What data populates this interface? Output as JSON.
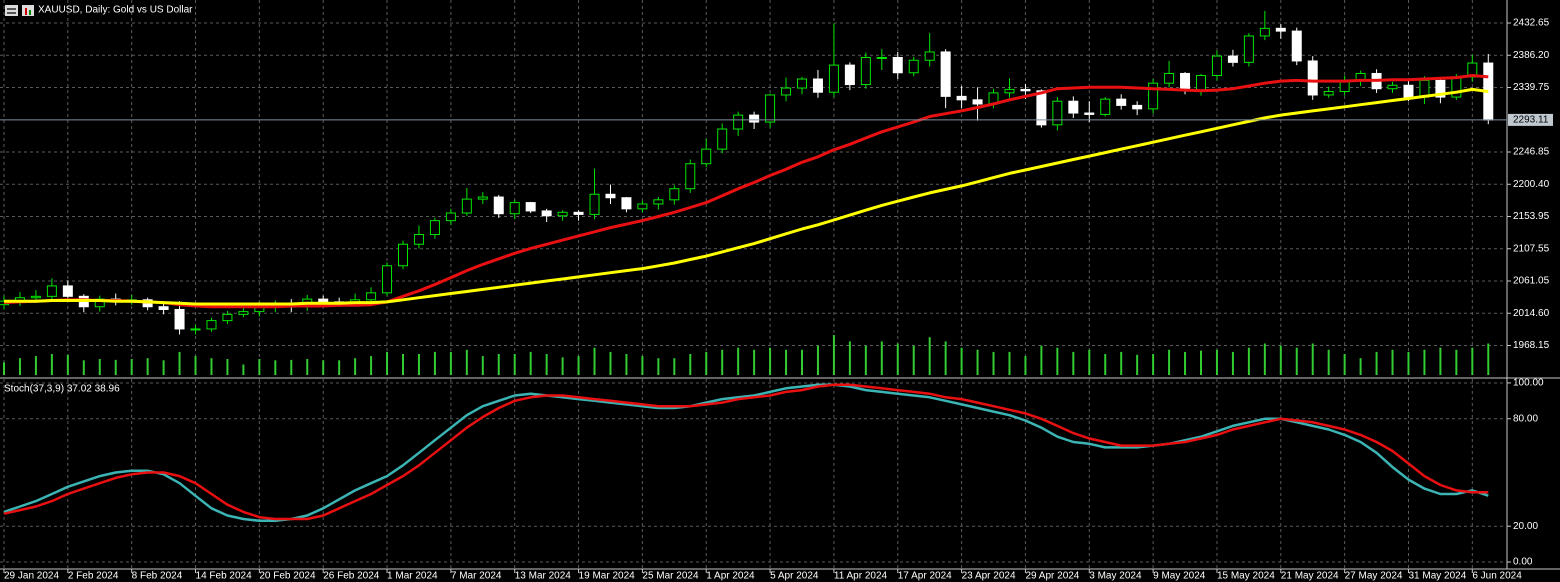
{
  "chart_data": [
    {
      "type": "candlestick",
      "title": "XAUUSD, Daily:  Gold vs US Dollar",
      "categories": [
        "29 Jan 2024",
        null,
        null,
        null,
        "2 Feb 2024",
        null,
        null,
        null,
        "8 Feb 2024",
        null,
        null,
        null,
        "14 Feb 2024",
        null,
        null,
        null,
        "20 Feb 2024",
        null,
        null,
        null,
        "26 Feb 2024",
        null,
        null,
        null,
        "1 Mar 2024",
        null,
        null,
        null,
        "7 Mar 2024",
        null,
        null,
        null,
        "13 Mar 2024",
        null,
        null,
        null,
        "19 Mar 2024",
        null,
        null,
        null,
        "25 Mar 2024",
        null,
        null,
        null,
        "1 Apr 2024",
        null,
        null,
        null,
        "5 Apr 2024",
        null,
        null,
        null,
        "11 Apr 2024",
        null,
        null,
        null,
        "17 Apr 2024",
        null,
        null,
        null,
        "23 Apr 2024",
        null,
        null,
        null,
        "29 Apr 2024",
        null,
        null,
        null,
        "3 May 2024",
        null,
        null,
        null,
        "9 May 2024",
        null,
        null,
        null,
        "15 May 2024",
        null,
        null,
        null,
        "21 May 2024",
        null,
        null,
        null,
        "27 May 2024",
        null,
        null,
        null,
        "31 May 2024",
        null,
        null,
        null,
        "6 Jun 2024",
        null
      ],
      "open": [
        2027,
        2032,
        2037,
        2039,
        2054,
        2039,
        2024,
        2035,
        2034,
        2034,
        2024,
        2020,
        1992,
        1992,
        2004,
        2013,
        2017,
        2024,
        2025,
        2024,
        2035,
        2031,
        2029,
        2034,
        2044,
        2083,
        2114,
        2128,
        2148,
        2159,
        2179,
        2182,
        2158,
        2174,
        2162,
        2155,
        2160,
        2157,
        2186,
        2181,
        2165,
        2172,
        2178,
        2194,
        2230,
        2251,
        2280,
        2300,
        2290,
        2329,
        2339,
        2352,
        2333,
        2372,
        2344,
        2383,
        2383,
        2361,
        2379,
        2391,
        2327,
        2322,
        2316,
        2332,
        2337,
        2335,
        2286,
        2320,
        2303,
        2301,
        2323,
        2314,
        2309,
        2346,
        2360,
        2336,
        2357,
        2385,
        2376,
        2414,
        2425,
        2421,
        2378,
        2329,
        2334,
        2350,
        2360,
        2338,
        2343,
        2326,
        2350,
        2326,
        2355,
        2375
      ],
      "high": [
        2040,
        2045,
        2048,
        2065,
        2062,
        2042,
        2040,
        2043,
        2041,
        2037,
        2032,
        2032,
        1998,
        2008,
        2018,
        2022,
        2031,
        2033,
        2035,
        2041,
        2040,
        2037,
        2043,
        2052,
        2088,
        2119,
        2141,
        2152,
        2165,
        2195,
        2189,
        2185,
        2178,
        2175,
        2165,
        2163,
        2163,
        2223,
        2200,
        2182,
        2177,
        2182,
        2199,
        2236,
        2266,
        2288,
        2305,
        2305,
        2331,
        2354,
        2355,
        2365,
        2432,
        2376,
        2390,
        2395,
        2391,
        2384,
        2418,
        2395,
        2342,
        2340,
        2338,
        2353,
        2345,
        2337,
        2326,
        2327,
        2320,
        2326,
        2330,
        2320,
        2352,
        2378,
        2362,
        2359,
        2393,
        2394,
        2418,
        2450,
        2431,
        2426,
        2385,
        2341,
        2357,
        2364,
        2366,
        2348,
        2352,
        2356,
        2355,
        2359,
        2387,
        2388
      ],
      "low": [
        2020,
        2025,
        2030,
        2032,
        2033,
        2016,
        2017,
        2026,
        2027,
        2019,
        2013,
        1984,
        1984,
        1988,
        1999,
        2009,
        2010,
        2016,
        2016,
        2018,
        2025,
        2024,
        2025,
        2030,
        2040,
        2078,
        2108,
        2122,
        2142,
        2155,
        2172,
        2152,
        2150,
        2159,
        2146,
        2148,
        2148,
        2150,
        2172,
        2160,
        2160,
        2164,
        2171,
        2188,
        2225,
        2245,
        2270,
        2280,
        2282,
        2320,
        2330,
        2325,
        2326,
        2336,
        2338,
        2365,
        2352,
        2356,
        2370,
        2310,
        2310,
        2292,
        2310,
        2325,
        2323,
        2282,
        2278,
        2296,
        2290,
        2298,
        2308,
        2300,
        2302,
        2340,
        2330,
        2328,
        2350,
        2370,
        2370,
        2408,
        2410,
        2372,
        2322,
        2325,
        2328,
        2342,
        2332,
        2332,
        2320,
        2316,
        2317,
        2322,
        2348,
        2287
      ],
      "close": [
        2032,
        2037,
        2039,
        2054,
        2039,
        2024,
        2035,
        2034,
        2034,
        2024,
        2020,
        1992,
        1992,
        2004,
        2013,
        2017,
        2024,
        2025,
        2024,
        2035,
        2031,
        2029,
        2034,
        2044,
        2083,
        2114,
        2128,
        2148,
        2159,
        2179,
        2182,
        2158,
        2174,
        2162,
        2155,
        2160,
        2157,
        2186,
        2181,
        2165,
        2172,
        2178,
        2194,
        2230,
        2251,
        2280,
        2300,
        2290,
        2329,
        2339,
        2352,
        2333,
        2372,
        2344,
        2383,
        2383,
        2361,
        2379,
        2391,
        2327,
        2322,
        2316,
        2332,
        2337,
        2335,
        2286,
        2320,
        2303,
        2301,
        2323,
        2314,
        2309,
        2346,
        2360,
        2336,
        2357,
        2385,
        2376,
        2414,
        2425,
        2421,
        2378,
        2329,
        2334,
        2350,
        2360,
        2338,
        2343,
        2326,
        2350,
        2326,
        2355,
        2375,
        2293
      ],
      "up_color": "#00e600",
      "up_fill": "#000000",
      "down_color": "#ffffff",
      "series": [
        {
          "color": "#e81010",
          "values": [
            2030,
            2031,
            2032,
            2033,
            2034,
            2034,
            2033,
            2033,
            2032,
            2031,
            2030,
            2027,
            2025,
            2024,
            2024,
            2024,
            2024,
            2024,
            2025,
            2025,
            2025,
            2026,
            2026,
            2027,
            2031,
            2039,
            2047,
            2056,
            2066,
            2076,
            2085,
            2093,
            2101,
            2108,
            2114,
            2120,
            2126,
            2132,
            2138,
            2143,
            2148,
            2154,
            2160,
            2167,
            2174,
            2184,
            2194,
            2203,
            2213,
            2222,
            2232,
            2240,
            2250,
            2258,
            2267,
            2276,
            2283,
            2290,
            2298,
            2302,
            2306,
            2311,
            2316,
            2322,
            2327,
            2332,
            2338,
            2339,
            2340,
            2340,
            2340,
            2339,
            2338,
            2337,
            2336,
            2335,
            2336,
            2338,
            2342,
            2346,
            2349,
            2350,
            2349,
            2349,
            2349,
            2350,
            2350,
            2351,
            2351,
            2352,
            2353,
            2354,
            2357,
            2355
          ]
        },
        {
          "color": "#ffff00",
          "values": [
            2032,
            2032,
            2032,
            2033,
            2033,
            2033,
            2033,
            2032,
            2032,
            2031,
            2030,
            2029,
            2028,
            2028,
            2028,
            2028,
            2028,
            2028,
            2028,
            2029,
            2029,
            2029,
            2030,
            2030,
            2031,
            2034,
            2037,
            2040,
            2043,
            2046,
            2049,
            2052,
            2055,
            2058,
            2061,
            2064,
            2067,
            2070,
            2073,
            2076,
            2079,
            2083,
            2087,
            2092,
            2097,
            2103,
            2109,
            2115,
            2122,
            2129,
            2136,
            2142,
            2149,
            2156,
            2163,
            2170,
            2176,
            2182,
            2188,
            2193,
            2198,
            2204,
            2210,
            2216,
            2221,
            2226,
            2231,
            2236,
            2241,
            2246,
            2251,
            2256,
            2261,
            2266,
            2271,
            2276,
            2281,
            2286,
            2291,
            2296,
            2300,
            2303,
            2306,
            2309,
            2312,
            2315,
            2318,
            2321,
            2324,
            2327,
            2330,
            2333,
            2337,
            2334
          ]
        }
      ],
      "volume": [
        30,
        40,
        45,
        50,
        48,
        35,
        38,
        36,
        38,
        40,
        35,
        55,
        45,
        40,
        38,
        25,
        38,
        35,
        36,
        38,
        35,
        35,
        40,
        45,
        55,
        50,
        50,
        55,
        55,
        60,
        45,
        50,
        50,
        55,
        50,
        42,
        45,
        65,
        55,
        50,
        45,
        40,
        40,
        50,
        55,
        60,
        65,
        60,
        65,
        60,
        60,
        70,
        95,
        80,
        70,
        80,
        75,
        70,
        90,
        80,
        65,
        60,
        55,
        55,
        45,
        70,
        65,
        55,
        60,
        50,
        55,
        48,
        50,
        60,
        55,
        58,
        60,
        55,
        65,
        75,
        70,
        65,
        75,
        60,
        50,
        40,
        55,
        60,
        55,
        60,
        65,
        60,
        65,
        75
      ],
      "volume_color": "#33cc33",
      "volume_lim": [
        0,
        100
      ],
      "ylim": [
        1922.8,
        2465.8
      ],
      "yticks": [
        2432.65,
        {
          "value": 2386.2,
          "label": "2386.20"
        },
        2339.75,
        2246.85,
        {
          "value": 2200.4,
          "label": "2200.40"
        },
        2153.95,
        2107.55,
        2061.05,
        {
          "value": 2014.6,
          "label": "2014.60"
        },
        1968.15
      ],
      "last_price": {
        "value": 2293.11,
        "label": "2293.11"
      },
      "grid": true
    },
    {
      "type": "line",
      "title": "Stoch(37,3,9) 37.02 38.96",
      "series": [
        {
          "color": "#3cb4b4",
          "values": [
            28,
            31,
            34,
            38,
            42,
            45,
            48,
            50,
            51,
            51,
            49,
            44,
            37,
            30,
            26,
            24,
            23,
            23,
            24,
            26,
            30,
            35,
            40,
            44,
            48,
            54,
            61,
            68,
            75,
            82,
            87,
            90,
            93,
            94,
            93,
            92,
            91,
            90,
            89,
            88,
            87,
            86,
            86,
            87,
            89,
            91,
            92,
            93,
            95,
            97,
            98,
            99,
            99,
            98,
            96,
            95,
            94,
            93,
            92,
            90,
            88,
            86,
            84,
            82,
            79,
            75,
            70,
            67,
            66,
            64,
            64,
            64,
            65,
            66,
            68,
            70,
            73,
            76,
            78,
            80,
            80,
            78,
            76,
            74,
            71,
            67,
            61,
            53,
            46,
            41,
            38,
            38,
            40,
            37.02
          ]
        },
        {
          "color": "#e81010",
          "values": [
            27,
            29,
            31,
            34,
            38,
            41,
            44,
            47,
            49,
            50,
            50,
            48,
            44,
            38,
            32,
            28,
            25,
            24,
            24,
            24,
            26,
            30,
            34,
            38,
            43,
            48,
            54,
            61,
            68,
            75,
            81,
            86,
            90,
            92,
            93,
            93,
            92,
            91,
            90,
            89,
            88,
            87,
            87,
            87,
            88,
            89,
            91,
            92,
            93,
            95,
            96,
            98,
            99,
            99,
            98,
            97,
            96,
            95,
            94,
            92,
            91,
            89,
            87,
            85,
            83,
            80,
            76,
            72,
            69,
            67,
            65,
            65,
            65,
            66,
            67,
            69,
            71,
            74,
            76,
            78,
            80,
            79,
            78,
            76,
            74,
            71,
            67,
            62,
            55,
            48,
            43,
            40,
            39,
            38.96
          ]
        }
      ],
      "ylim": [
        -3.9,
        102.2
      ],
      "yticks": [
        {
          "value": 100,
          "label": "100.00"
        },
        {
          "value": 80,
          "label": "80.00"
        },
        {
          "value": 20,
          "label": "20.00"
        },
        {
          "value": 0,
          "label": "0.00"
        }
      ],
      "grid": true
    }
  ]
}
